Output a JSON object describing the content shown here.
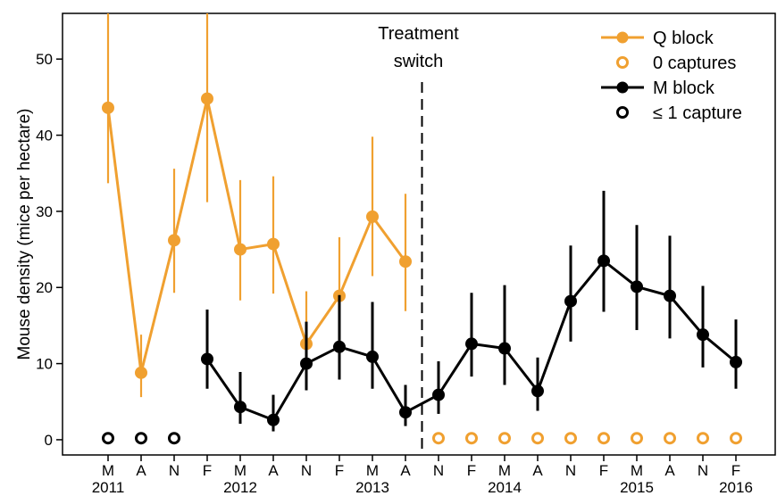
{
  "chart_data": {
    "type": "line",
    "ylabel": "Mouse density (mice per hectare)",
    "ylim": [
      -2,
      56
    ],
    "yticks": [
      0,
      10,
      20,
      30,
      40,
      50
    ],
    "x_tick_labels": [
      "M",
      "A",
      "N",
      "F",
      "M",
      "A",
      "N",
      "F",
      "M",
      "A",
      "N",
      "F",
      "M",
      "A",
      "N",
      "F",
      "M",
      "A",
      "N",
      "F"
    ],
    "year_labels": [
      {
        "label": "2011",
        "tick_index": 0
      },
      {
        "label": "2012",
        "tick_index": 4
      },
      {
        "label": "2013",
        "tick_index": 8
      },
      {
        "label": "2014",
        "tick_index": 12
      },
      {
        "label": "2015",
        "tick_index": 16
      },
      {
        "label": "2016",
        "tick_index": 19
      }
    ],
    "annotation": {
      "line1": "Treatment",
      "line2": "switch",
      "after_index": 9.5
    },
    "legend_placement": "top-right",
    "legend": [
      {
        "label": "Q block",
        "kind": "line-filled",
        "color": "#F0A030"
      },
      {
        "label": "0 captures",
        "kind": "open",
        "color": "#F0A030"
      },
      {
        "label": "M block",
        "kind": "line-filled",
        "color": "#000000"
      },
      {
        "label": "≤ 1 capture",
        "kind": "open",
        "color": "#000000"
      }
    ],
    "series": [
      {
        "name": "Q block",
        "color": "#F0A030",
        "points": [
          {
            "x": 0,
            "y": 43.6,
            "lo": 33.7,
            "hi": 56
          },
          {
            "x": 1,
            "y": 8.8,
            "lo": 5.6,
            "hi": 13.8
          },
          {
            "x": 2,
            "y": 26.2,
            "lo": 19.3,
            "hi": 35.6
          },
          {
            "x": 3,
            "y": 44.8,
            "lo": 31.2,
            "hi": 56
          },
          {
            "x": 4,
            "y": 25.0,
            "lo": 18.3,
            "hi": 34.1
          },
          {
            "x": 5,
            "y": 25.7,
            "lo": 19.2,
            "hi": 34.6
          },
          {
            "x": 6,
            "y": 12.6,
            "lo": 8.5,
            "hi": 19.5
          },
          {
            "x": 7,
            "y": 18.9,
            "lo": 13.1,
            "hi": 26.6
          },
          {
            "x": 8,
            "y": 29.3,
            "lo": 21.5,
            "hi": 39.8
          },
          {
            "x": 9,
            "y": 23.4,
            "lo": 16.9,
            "hi": 32.3
          }
        ],
        "zero_points": [
          10,
          11,
          12,
          13,
          14,
          15,
          16,
          17,
          18,
          19
        ]
      },
      {
        "name": "M block",
        "color": "#000000",
        "points": [
          {
            "x": 3,
            "y": 10.6,
            "lo": 6.7,
            "hi": 17.1
          },
          {
            "x": 4,
            "y": 4.3,
            "lo": 2.1,
            "hi": 8.9
          },
          {
            "x": 5,
            "y": 2.6,
            "lo": 1.1,
            "hi": 5.9
          },
          {
            "x": 6,
            "y": 10.0,
            "lo": 6.5,
            "hi": 15.5
          },
          {
            "x": 7,
            "y": 12.2,
            "lo": 7.9,
            "hi": 19.0
          },
          {
            "x": 8,
            "y": 10.9,
            "lo": 6.7,
            "hi": 18.1
          },
          {
            "x": 9,
            "y": 3.6,
            "lo": 1.8,
            "hi": 7.2
          },
          {
            "x": 10,
            "y": 5.9,
            "lo": 3.4,
            "hi": 10.3
          },
          {
            "x": 11,
            "y": 12.6,
            "lo": 8.3,
            "hi": 19.3
          },
          {
            "x": 12,
            "y": 12.0,
            "lo": 7.2,
            "hi": 20.3
          },
          {
            "x": 13,
            "y": 6.4,
            "lo": 3.8,
            "hi": 10.8
          },
          {
            "x": 14,
            "y": 18.2,
            "lo": 12.9,
            "hi": 25.5
          },
          {
            "x": 15,
            "y": 23.5,
            "lo": 16.8,
            "hi": 32.7
          },
          {
            "x": 16,
            "y": 20.1,
            "lo": 14.4,
            "hi": 28.2
          },
          {
            "x": 17,
            "y": 18.9,
            "lo": 13.3,
            "hi": 26.8
          },
          {
            "x": 18,
            "y": 13.8,
            "lo": 9.5,
            "hi": 20.2
          },
          {
            "x": 19,
            "y": 10.2,
            "lo": 6.7,
            "hi": 15.8
          }
        ],
        "zero_points": [
          0,
          1,
          2
        ]
      }
    ]
  }
}
